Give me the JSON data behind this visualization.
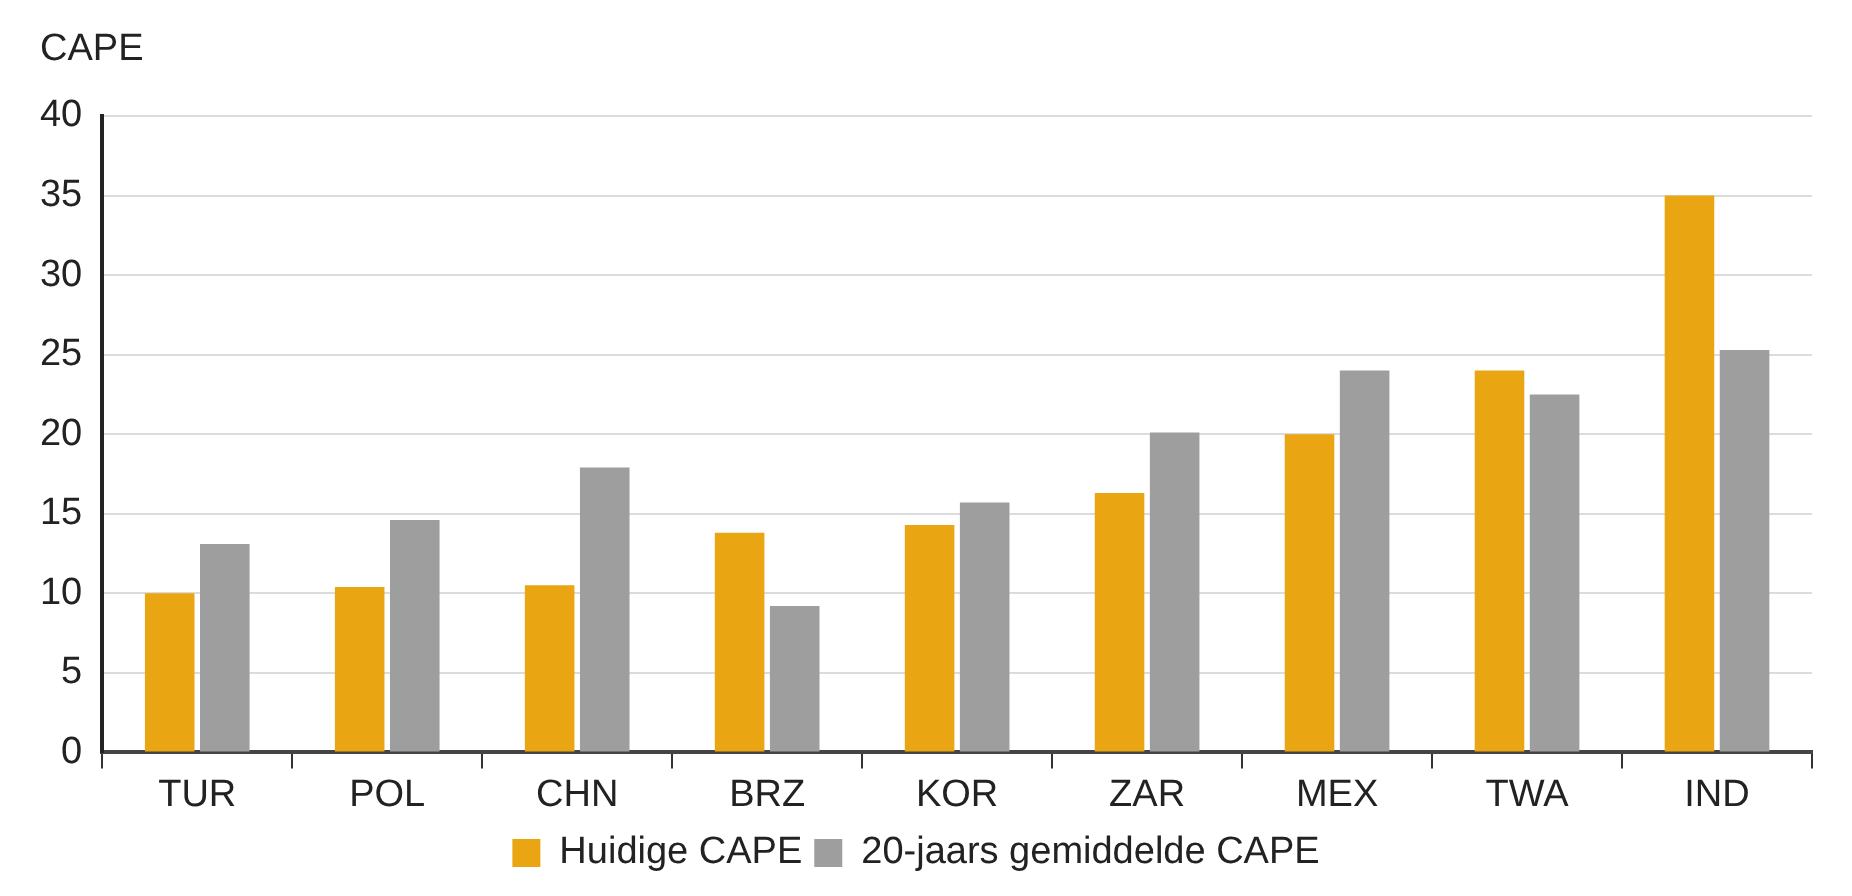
{
  "chart_data": {
    "type": "bar",
    "ylabel": "CAPE",
    "categories": [
      "TUR",
      "POL",
      "CHN",
      "BRZ",
      "KOR",
      "ZAR",
      "MEX",
      "TWA",
      "IND"
    ],
    "series": [
      {
        "name": "Huidige CAPE",
        "color": "#eaa512",
        "values": [
          10.0,
          10.4,
          10.5,
          13.8,
          14.3,
          16.3,
          20.0,
          24.0,
          35.0
        ]
      },
      {
        "name": "20-jaars gemiddelde CAPE",
        "color": "#9e9e9e",
        "values": [
          13.1,
          14.6,
          17.9,
          9.2,
          15.7,
          20.1,
          24.0,
          22.5,
          25.3
        ]
      }
    ],
    "ylim": [
      0,
      40
    ],
    "yticks": [
      0,
      5,
      10,
      15,
      20,
      25,
      30,
      35,
      40
    ],
    "grid": "y",
    "legend": "bottom"
  }
}
